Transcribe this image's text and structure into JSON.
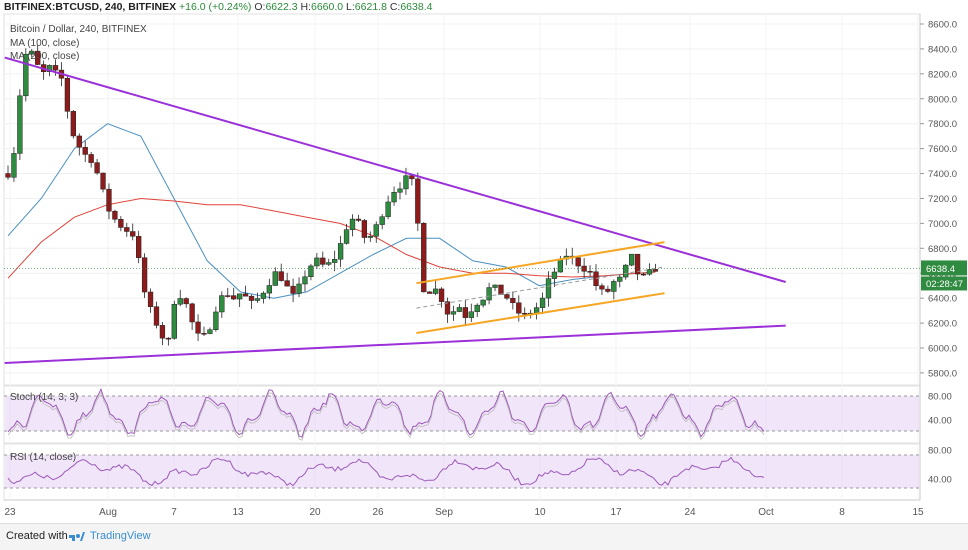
{
  "header": {
    "symbol": "BITFINEX:BTCUSD, 240, BITFINEX",
    "change": "+16.0 (+0.24%)",
    "o_label": "O:",
    "o": "6622.3",
    "h_label": "H:",
    "h": "6660.0",
    "l_label": "L:",
    "l": "6621.8",
    "c_label": "C:",
    "c": "6638.4"
  },
  "legend": {
    "title": "Bitcoin / Dollar, 240, BITFINEX",
    "ma1": "MA (100, close)",
    "ma2": "MA (200, close)"
  },
  "stoch_label": "Stoch (14, 3, 3)",
  "rsi_label": "RSI (14, close)",
  "last_price": "6638.4",
  "countdown": "02:28:47",
  "footer": {
    "created_with": "Created with",
    "brand": "TradingView"
  },
  "colors": {
    "up": "#2f8b3f",
    "down": "#8e1b1b",
    "ma100": "#4a90c0",
    "ma200": "#e0443a",
    "triangle": "#9b30d9",
    "channel": "#f5a623",
    "oscillator": "#9b59b6"
  },
  "chart_data": {
    "type": "candlestick",
    "title": "Bitcoin / Dollar, 240, BITFINEX",
    "y_ticks": [
      "8600.0",
      "8400.0",
      "8200.0",
      "8000.0",
      "7800.0",
      "7600.0",
      "7400.0",
      "7200.0",
      "7000.0",
      "6800.0",
      "6600.0",
      "6400.0",
      "6200.0",
      "6000.0",
      "5800.0"
    ],
    "x_ticks": [
      "23",
      "Aug",
      "7",
      "13",
      "20",
      "26",
      "Sep",
      "10",
      "17",
      "24",
      "Oct",
      "8",
      "15"
    ],
    "ylim": [
      5700,
      8700
    ],
    "stoch_ticks": [
      "80.00",
      "40.00"
    ],
    "rsi_ticks": [
      "80.00",
      "40.00"
    ],
    "price_path": [
      [
        0,
        7400
      ],
      [
        0.8,
        7600
      ],
      [
        1.6,
        8150
      ],
      [
        2.4,
        8450
      ],
      [
        3.2,
        8300
      ],
      [
        4.2,
        8200
      ],
      [
        5,
        8250
      ],
      [
        5.8,
        8200
      ],
      [
        6.6,
        8150
      ],
      [
        7.4,
        7800
      ],
      [
        8.2,
        7650
      ],
      [
        9.3,
        7550
      ],
      [
        10.3,
        7500
      ],
      [
        11.2,
        7300
      ],
      [
        12.2,
        7100
      ],
      [
        13.2,
        7000
      ],
      [
        14.2,
        6950
      ],
      [
        15.3,
        6900
      ],
      [
        16.2,
        6500
      ],
      [
        17.2,
        6300
      ],
      [
        18.2,
        6150
      ],
      [
        19.2,
        6000
      ],
      [
        20.2,
        6450
      ],
      [
        21.2,
        6400
      ],
      [
        22.2,
        6200
      ],
      [
        23.2,
        6050
      ],
      [
        24.2,
        6150
      ],
      [
        25.2,
        6350
      ],
      [
        26.2,
        6450
      ],
      [
        27.2,
        6400
      ],
      [
        28.2,
        6450
      ],
      [
        29.2,
        6350
      ],
      [
        30.2,
        6400
      ],
      [
        31.2,
        6500
      ],
      [
        32.2,
        6600
      ],
      [
        33.2,
        6550
      ],
      [
        34.2,
        6400
      ],
      [
        35.2,
        6500
      ],
      [
        36.2,
        6650
      ],
      [
        37.2,
        6700
      ],
      [
        38.2,
        6650
      ],
      [
        39.2,
        6700
      ],
      [
        40.2,
        6850
      ],
      [
        41.2,
        7050
      ],
      [
        42.2,
        7000
      ],
      [
        43.2,
        6850
      ],
      [
        44.2,
        6950
      ],
      [
        45.2,
        7100
      ],
      [
        46.2,
        7250
      ],
      [
        47.2,
        7300
      ],
      [
        48.5,
        7400
      ],
      [
        49.3,
        7050
      ],
      [
        50.2,
        6400
      ],
      [
        51.2,
        6500
      ],
      [
        52.2,
        6400
      ],
      [
        53.2,
        6250
      ],
      [
        54.2,
        6350
      ],
      [
        55.2,
        6250
      ],
      [
        56.2,
        6350
      ],
      [
        57.2,
        6400
      ],
      [
        58.2,
        6500
      ],
      [
        59.2,
        6450
      ],
      [
        60.2,
        6400
      ],
      [
        61.2,
        6300
      ],
      [
        62.2,
        6250
      ],
      [
        63.2,
        6300
      ],
      [
        64.2,
        6350
      ],
      [
        65.2,
        6550
      ],
      [
        66.2,
        6650
      ],
      [
        67.2,
        6750
      ],
      [
        68.2,
        6700
      ],
      [
        69.2,
        6650
      ],
      [
        70.2,
        6600
      ],
      [
        71.2,
        6450
      ],
      [
        72.2,
        6450
      ],
      [
        73.2,
        6550
      ],
      [
        74.2,
        6550
      ],
      [
        74.8,
        6800
      ],
      [
        75.5,
        6650
      ],
      [
        76.2,
        6550
      ],
      [
        77.2,
        6600
      ],
      [
        78,
        6638
      ]
    ],
    "ma100_path": [
      [
        0,
        6900
      ],
      [
        4,
        7200
      ],
      [
        8,
        7600
      ],
      [
        12,
        7800
      ],
      [
        16,
        7700
      ],
      [
        20,
        7200
      ],
      [
        24,
        6700
      ],
      [
        28,
        6450
      ],
      [
        32,
        6400
      ],
      [
        36,
        6450
      ],
      [
        40,
        6600
      ],
      [
        44,
        6750
      ],
      [
        48,
        6880
      ],
      [
        52,
        6880
      ],
      [
        56,
        6700
      ],
      [
        60,
        6650
      ],
      [
        64,
        6500
      ],
      [
        68,
        6550
      ],
      [
        72,
        6580
      ],
      [
        76,
        6600
      ],
      [
        78,
        6610
      ]
    ],
    "ma200_path": [
      [
        0,
        6560
      ],
      [
        4,
        6850
      ],
      [
        8,
        7050
      ],
      [
        12,
        7150
      ],
      [
        16,
        7200
      ],
      [
        20,
        7180
      ],
      [
        24,
        7150
      ],
      [
        28,
        7150
      ],
      [
        32,
        7100
      ],
      [
        36,
        7050
      ],
      [
        40,
        7000
      ],
      [
        44,
        6900
      ],
      [
        48,
        6750
      ],
      [
        52,
        6650
      ],
      [
        56,
        6600
      ],
      [
        60,
        6600
      ],
      [
        64,
        6580
      ],
      [
        68,
        6570
      ],
      [
        72,
        6580
      ],
      [
        76,
        6600
      ],
      [
        78,
        6610
      ]
    ],
    "triangle_upper": [
      [
        -0.4,
        8330
      ],
      [
        93.7,
        6530
      ]
    ],
    "triangle_lower": [
      [
        -0.4,
        5880
      ],
      [
        93.7,
        6180
      ]
    ],
    "channel_upper": [
      [
        49.2,
        6520
      ],
      [
        79.1,
        6850
      ]
    ],
    "channel_lower": [
      [
        49.2,
        6120
      ],
      [
        79.1,
        6440
      ]
    ],
    "channel_mid": [
      [
        49.2,
        6320
      ],
      [
        79.1,
        6650
      ]
    ]
  }
}
